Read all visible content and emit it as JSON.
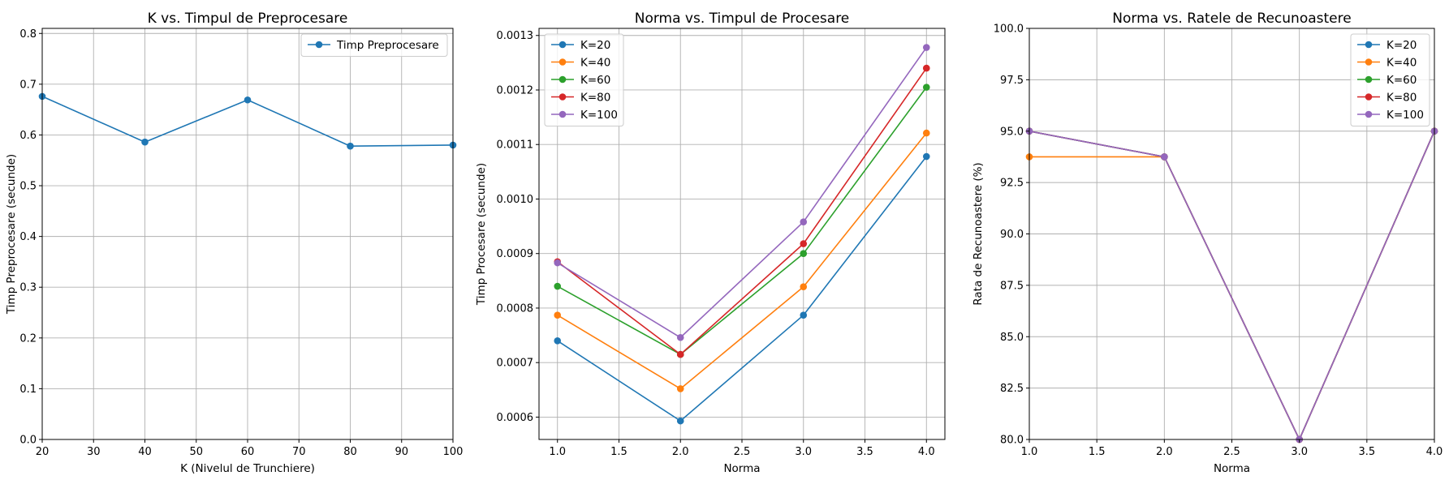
{
  "chart_data": [
    {
      "type": "line",
      "title": "K vs. Timpul de Preprocesare",
      "xlabel": "K (Nivelul de Trunchiere)",
      "ylabel": "Timp Preprocesare (secunde)",
      "x": [
        20,
        40,
        60,
        80,
        100
      ],
      "series": [
        {
          "name": "Timp Preprocesare",
          "color": "#1f77b4",
          "values": [
            0.676,
            0.586,
            0.669,
            0.578,
            0.58
          ]
        }
      ],
      "xlim": [
        20,
        100
      ],
      "ylim": [
        0,
        0.81
      ],
      "xticks": [
        20,
        30,
        40,
        50,
        60,
        70,
        80,
        90,
        100
      ],
      "xtick_labels": [
        "20",
        "30",
        "40",
        "50",
        "60",
        "70",
        "80",
        "90",
        "100"
      ],
      "yticks": [
        0,
        0.1,
        0.2,
        0.3,
        0.4,
        0.5,
        0.6,
        0.7,
        0.8
      ],
      "ytick_labels": [
        "0.0",
        "0.1",
        "0.2",
        "0.3",
        "0.4",
        "0.5",
        "0.6",
        "0.7",
        "0.8"
      ],
      "grid": true,
      "legend_position": "top-right"
    },
    {
      "type": "line",
      "title": "Norma vs. Timpul de Procesare",
      "xlabel": "Norma",
      "ylabel": "Timp Procesare (secunde)",
      "x": [
        1.0,
        2.0,
        3.0,
        4.0
      ],
      "series": [
        {
          "name": "K=20",
          "color": "#1f77b4",
          "values": [
            0.00074,
            0.000593,
            0.000787,
            0.001078
          ]
        },
        {
          "name": "K=40",
          "color": "#ff7f0e",
          "values": [
            0.000787,
            0.000652,
            0.000839,
            0.001121
          ]
        },
        {
          "name": "K=60",
          "color": "#2ca02c",
          "values": [
            0.00084,
            0.000715,
            0.0009,
            0.001205
          ]
        },
        {
          "name": "K=80",
          "color": "#d62728",
          "values": [
            0.000885,
            0.000715,
            0.000918,
            0.00124
          ]
        },
        {
          "name": "K=100",
          "color": "#9467bd",
          "values": [
            0.000883,
            0.000746,
            0.000958,
            0.001278
          ]
        }
      ],
      "xlim": [
        0.85,
        4.15
      ],
      "ylim": [
        0.000559,
        0.001313
      ],
      "xticks": [
        1.0,
        1.5,
        2.0,
        2.5,
        3.0,
        3.5,
        4.0
      ],
      "xtick_labels": [
        "1.0",
        "1.5",
        "2.0",
        "2.5",
        "3.0",
        "3.5",
        "4.0"
      ],
      "yticks": [
        0.0006,
        0.0007,
        0.0008,
        0.0009,
        0.001,
        0.0011,
        0.0012,
        0.0013
      ],
      "ytick_labels": [
        "0.0006",
        "0.0007",
        "0.0008",
        "0.0009",
        "0.0010",
        "0.0011",
        "0.0012",
        "0.0013"
      ],
      "grid": true,
      "legend_position": "top-left"
    },
    {
      "type": "line",
      "title": "Norma vs. Ratele de Recunoastere",
      "xlabel": "Norma",
      "ylabel": "Rata de Recunoastere (%)",
      "x": [
        1.0,
        2.0,
        3.0,
        4.0
      ],
      "series": [
        {
          "name": "K=20",
          "color": "#1f77b4",
          "values": [
            95.0,
            93.75,
            80.0,
            95.0
          ]
        },
        {
          "name": "K=40",
          "color": "#ff7f0e",
          "values": [
            93.75,
            93.75,
            80.0,
            95.0
          ]
        },
        {
          "name": "K=60",
          "color": "#2ca02c",
          "values": [
            95.0,
            93.75,
            80.0,
            95.0
          ]
        },
        {
          "name": "K=80",
          "color": "#d62728",
          "values": [
            95.0,
            93.75,
            80.0,
            95.0
          ]
        },
        {
          "name": "K=100",
          "color": "#9467bd",
          "values": [
            95.0,
            93.75,
            80.0,
            95.0
          ]
        }
      ],
      "xlim": [
        1.0,
        4.0
      ],
      "ylim": [
        80.0,
        100.0
      ],
      "xticks": [
        1.0,
        1.5,
        2.0,
        2.5,
        3.0,
        3.5,
        4.0
      ],
      "xtick_labels": [
        "1.0",
        "1.5",
        "2.0",
        "2.5",
        "3.0",
        "3.5",
        "4.0"
      ],
      "yticks": [
        80.0,
        82.5,
        85.0,
        87.5,
        90.0,
        92.5,
        95.0,
        97.5,
        100.0
      ],
      "ytick_labels": [
        "80.0",
        "82.5",
        "85.0",
        "87.5",
        "90.0",
        "92.5",
        "95.0",
        "97.5",
        "100.0"
      ],
      "grid": true,
      "legend_position": "top-right"
    }
  ]
}
